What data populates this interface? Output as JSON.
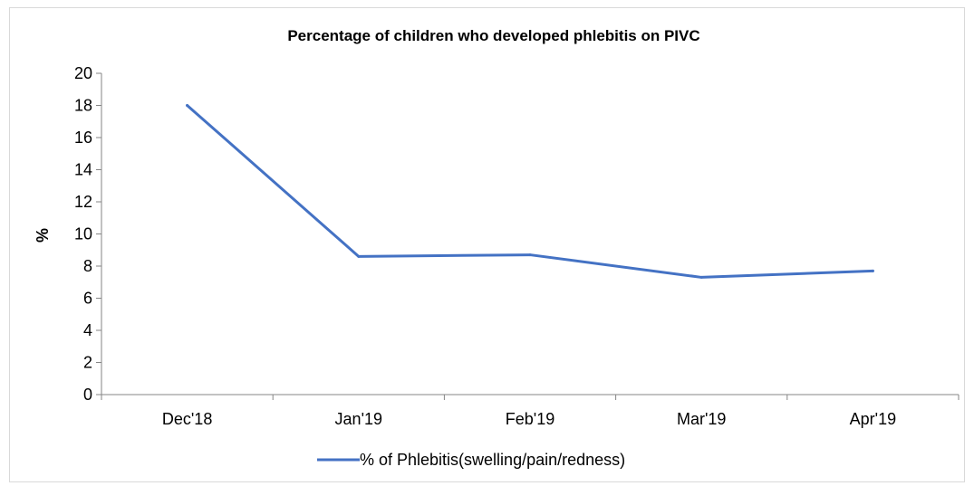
{
  "chart_data": {
    "type": "line",
    "title": "Percentage of children who developed phlebitis on PIVC",
    "xlabel": "",
    "ylabel": "%",
    "categories": [
      "Dec'18",
      "Jan'19",
      "Feb'19",
      "Mar'19",
      "Apr'19"
    ],
    "series": [
      {
        "name": "% of Phlebitis(swelling/pain/redness)",
        "values": [
          18.0,
          8.6,
          8.7,
          7.3,
          7.7
        ],
        "color": "#4472c4"
      }
    ],
    "ylim": [
      0,
      20
    ],
    "yticks": [
      "0",
      "2",
      "4",
      "6",
      "8",
      "10",
      "12",
      "14",
      "16",
      "18",
      "20"
    ],
    "grid": false,
    "legend_position": "bottom"
  }
}
